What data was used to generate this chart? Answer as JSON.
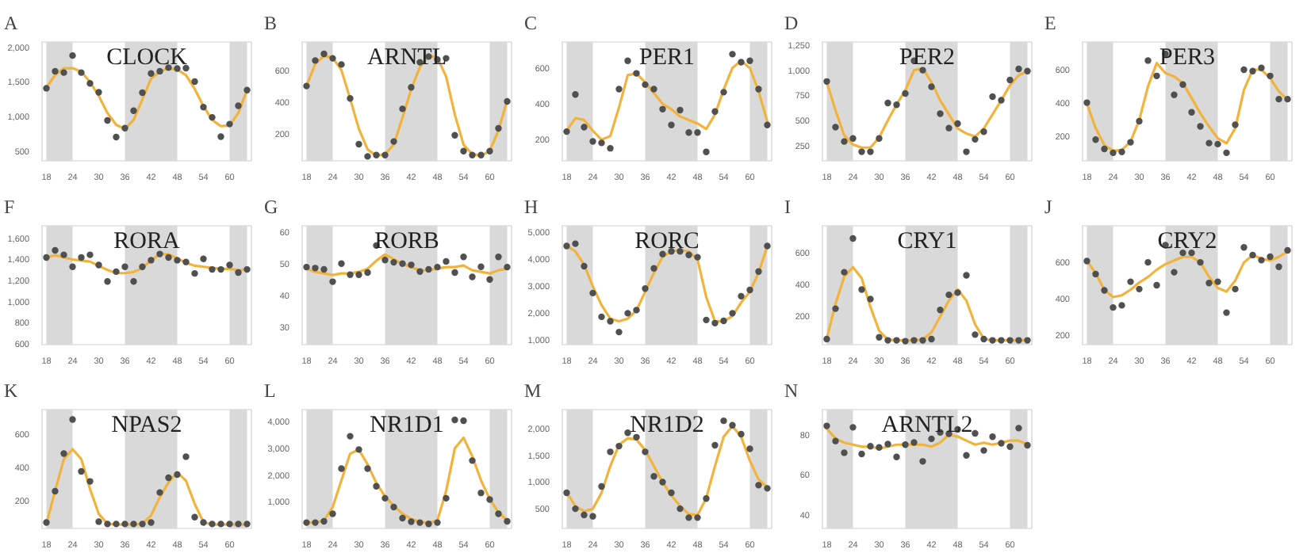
{
  "chart_data": [
    {
      "type": "scatter",
      "title": "A",
      "subtitle": "CLOCK",
      "x": [
        18,
        20,
        22,
        24,
        26,
        28,
        30,
        32,
        34,
        36,
        38,
        40,
        42,
        44,
        46,
        48,
        50,
        52,
        54,
        56,
        58,
        60,
        62,
        64
      ],
      "xlim": [
        17,
        65
      ],
      "xticks": [
        18,
        24,
        30,
        36,
        42,
        48,
        54,
        60
      ],
      "ylim": [
        357,
        2080
      ],
      "yticks": [
        500,
        {
          "value": 1000,
          "label": "1,000"
        },
        {
          "value": 1500,
          "label": "1,500"
        },
        {
          "value": 2000,
          "label": "2,000"
        }
      ],
      "bands": [
        {
          "axis": "x",
          "from": 18,
          "to": 24,
          "color": "#d9d9d9"
        },
        {
          "axis": "x",
          "from": 36,
          "to": 48,
          "color": "#d9d9d9"
        },
        {
          "axis": "x",
          "from": 60,
          "to": 64,
          "color": "#d9d9d9"
        }
      ],
      "series": [
        {
          "type": "line",
          "color": "#f2b33d",
          "marker": "none",
          "line_style": "solid",
          "values": [
            1420,
            1600,
            1700,
            1700,
            1650,
            1500,
            1300,
            1050,
            880,
            820,
            950,
            1250,
            1550,
            1650,
            1700,
            1680,
            1600,
            1400,
            1150,
            950,
            860,
            870,
            1050,
            1380
          ]
        },
        {
          "color": "#505050",
          "marker": "circle",
          "values": [
            1409,
            1656,
            1636,
            1883,
            1636,
            1480,
            1351,
            942,
            701,
            831,
            1084,
            1344,
            1623,
            1656,
            1708,
            1695,
            1701,
            1506,
            1136,
            987,
            708,
            890,
            1156,
            1383
          ]
        }
      ]
    },
    {
      "type": "scatter",
      "title": "B",
      "subtitle": "ARNTL",
      "x": [
        18,
        20,
        22,
        24,
        26,
        28,
        30,
        32,
        34,
        36,
        38,
        40,
        42,
        44,
        46,
        48,
        50,
        52,
        54,
        56,
        58,
        60,
        62,
        64
      ],
      "xlim": [
        17,
        65
      ],
      "xticks": [
        18,
        24,
        30,
        36,
        42,
        48,
        54,
        60
      ],
      "ylim": [
        28,
        778
      ],
      "yticks": [
        200,
        400,
        600
      ],
      "bands": [
        {
          "axis": "x",
          "from": 18,
          "to": 24,
          "color": "#d9d9d9"
        },
        {
          "axis": "x",
          "from": 36,
          "to": 48,
          "color": "#d9d9d9"
        },
        {
          "axis": "x",
          "from": 60,
          "to": 64,
          "color": "#d9d9d9"
        }
      ],
      "series": [
        {
          "type": "line",
          "color": "#f2b33d",
          "marker": "none",
          "line_style": "solid",
          "values": [
            500,
            640,
            690,
            680,
            600,
            420,
            230,
            100,
            60,
            70,
            130,
            300,
            480,
            620,
            690,
            680,
            560,
            320,
            130,
            70,
            60,
            90,
            220,
            410
          ]
        },
        {
          "color": "#505050",
          "marker": "circle",
          "values": [
            500,
            661,
            703,
            675,
            636,
            422,
            133,
            56,
            64,
            64,
            150,
            356,
            492,
            650,
            686,
            667,
            675,
            189,
            89,
            64,
            64,
            89,
            233,
            403
          ]
        }
      ]
    },
    {
      "type": "scatter",
      "title": "C",
      "subtitle": "PER1",
      "x": [
        18,
        20,
        22,
        24,
        26,
        28,
        30,
        32,
        34,
        36,
        38,
        40,
        42,
        44,
        46,
        48,
        50,
        52,
        54,
        56,
        58,
        60,
        62,
        64
      ],
      "xlim": [
        17,
        65
      ],
      "xticks": [
        18,
        24,
        30,
        36,
        42,
        48,
        54,
        60
      ],
      "ylim": [
        82,
        745
      ],
      "yticks": [
        200,
        400,
        600
      ],
      "bands": [
        {
          "axis": "x",
          "from": 18,
          "to": 24,
          "color": "#d9d9d9"
        },
        {
          "axis": "x",
          "from": 36,
          "to": 48,
          "color": "#d9d9d9"
        },
        {
          "axis": "x",
          "from": 60,
          "to": 64,
          "color": "#d9d9d9"
        }
      ],
      "series": [
        {
          "type": "line",
          "color": "#f2b33d",
          "marker": "none",
          "line_style": "solid",
          "values": [
            250,
            320,
            310,
            250,
            200,
            220,
            380,
            560,
            570,
            520,
            460,
            400,
            370,
            330,
            310,
            290,
            260,
            340,
            480,
            600,
            640,
            600,
            470,
            300
          ]
        },
        {
          "color": "#505050",
          "marker": "circle",
          "values": [
            245,
            452,
            270,
            190,
            182,
            152,
            482,
            640,
            570,
            507,
            482,
            370,
            282,
            365,
            240,
            240,
            132,
            357,
            465,
            677,
            632,
            640,
            482,
            282
          ]
        }
      ]
    },
    {
      "type": "scatter",
      "title": "D",
      "subtitle": "PER2",
      "x": [
        18,
        20,
        22,
        24,
        26,
        28,
        30,
        32,
        34,
        36,
        38,
        40,
        42,
        44,
        46,
        48,
        50,
        52,
        54,
        56,
        58,
        60,
        62,
        64
      ],
      "xlim": [
        17,
        65
      ],
      "xticks": [
        18,
        24,
        30,
        36,
        42,
        48,
        54,
        60
      ],
      "ylim": [
        98,
        1281
      ],
      "yticks": [
        250,
        500,
        750,
        {
          "value": 1000,
          "label": "1,000"
        },
        {
          "value": 1250,
          "label": "1,250"
        }
      ],
      "bands": [
        {
          "axis": "x",
          "from": 18,
          "to": 24,
          "color": "#d9d9d9"
        },
        {
          "axis": "x",
          "from": 36,
          "to": 48,
          "color": "#d9d9d9"
        },
        {
          "axis": "x",
          "from": 60,
          "to": 64,
          "color": "#d9d9d9"
        }
      ],
      "series": [
        {
          "type": "line",
          "color": "#f2b33d",
          "marker": "none",
          "line_style": "solid",
          "values": [
            880,
            600,
            350,
            260,
            230,
            230,
            330,
            500,
            660,
            800,
            1000,
            1020,
            880,
            700,
            560,
            420,
            370,
            340,
            420,
            560,
            700,
            850,
            950,
            990
          ]
        },
        {
          "color": "#505050",
          "marker": "circle",
          "values": [
            888,
            433,
            290,
            321,
            188,
            188,
            321,
            674,
            656,
            768,
            1094,
            1000,
            835,
            567,
            424,
            469,
            188,
            312,
            388,
            737,
            701,
            902,
            1013,
            991
          ]
        }
      ]
    },
    {
      "type": "scatter",
      "title": "E",
      "subtitle": "PER3",
      "x": [
        18,
        20,
        22,
        24,
        26,
        28,
        30,
        32,
        34,
        36,
        38,
        40,
        42,
        44,
        46,
        48,
        50,
        52,
        54,
        56,
        58,
        60,
        62,
        64
      ],
      "xlim": [
        17,
        65
      ],
      "xticks": [
        18,
        24,
        30,
        36,
        42,
        48,
        54,
        60
      ],
      "ylim": [
        55,
        766
      ],
      "yticks": [
        200,
        400,
        600
      ],
      "bands": [
        {
          "axis": "x",
          "from": 18,
          "to": 24,
          "color": "#d9d9d9"
        },
        {
          "axis": "x",
          "from": 36,
          "to": 48,
          "color": "#d9d9d9"
        },
        {
          "axis": "x",
          "from": 60,
          "to": 64,
          "color": "#d9d9d9"
        }
      ],
      "series": [
        {
          "type": "line",
          "color": "#f2b33d",
          "marker": "none",
          "line_style": "solid",
          "values": [
            400,
            250,
            150,
            115,
            120,
            170,
            300,
            500,
            640,
            580,
            560,
            520,
            430,
            340,
            260,
            190,
            160,
            250,
            480,
            600,
            600,
            550,
            470,
            420
          ]
        },
        {
          "color": "#505050",
          "marker": "circle",
          "values": [
            403,
            182,
            126,
            103,
            108,
            166,
            292,
            655,
            563,
            695,
            450,
            511,
            345,
            261,
            161,
            155,
            103,
            271,
            600,
            592,
            611,
            563,
            424,
            424
          ]
        }
      ]
    },
    {
      "type": "scatter",
      "title": "F",
      "subtitle": "RORA",
      "x": [
        18,
        20,
        22,
        24,
        26,
        28,
        30,
        32,
        34,
        36,
        38,
        40,
        42,
        44,
        46,
        48,
        50,
        52,
        54,
        56,
        58,
        60,
        62,
        64
      ],
      "xlim": [
        17,
        65
      ],
      "xticks": [
        18,
        24,
        30,
        36,
        42,
        48,
        54,
        60
      ],
      "ylim": [
        590,
        1720
      ],
      "yticks": [
        600,
        800,
        {
          "value": 1000,
          "label": "1,000"
        },
        {
          "value": 1200,
          "label": "1,200"
        },
        {
          "value": 1400,
          "label": "1,400"
        },
        {
          "value": 1600,
          "label": "1,600"
        }
      ],
      "bands": [
        {
          "axis": "x",
          "from": 18,
          "to": 24,
          "color": "#d9d9d9"
        },
        {
          "axis": "x",
          "from": 36,
          "to": 48,
          "color": "#d9d9d9"
        },
        {
          "axis": "x",
          "from": 60,
          "to": 64,
          "color": "#d9d9d9"
        }
      ],
      "series": [
        {
          "type": "line",
          "color": "#f2b33d",
          "marker": "none",
          "line_style": "solid",
          "values": [
            1420,
            1440,
            1420,
            1400,
            1390,
            1380,
            1340,
            1300,
            1270,
            1270,
            1280,
            1320,
            1390,
            1450,
            1450,
            1410,
            1370,
            1340,
            1330,
            1320,
            1310,
            1310,
            1300,
            1300
          ]
        },
        {
          "color": "#505050",
          "marker": "circle",
          "values": [
            1419,
            1486,
            1444,
            1330,
            1419,
            1444,
            1347,
            1191,
            1284,
            1330,
            1191,
            1330,
            1393,
            1452,
            1419,
            1393,
            1376,
            1267,
            1406,
            1305,
            1305,
            1347,
            1275,
            1305
          ]
        }
      ]
    },
    {
      "type": "scatter",
      "title": "G",
      "subtitle": "RORB",
      "x": [
        18,
        20,
        22,
        24,
        26,
        28,
        30,
        32,
        34,
        36,
        38,
        40,
        42,
        44,
        46,
        48,
        50,
        52,
        54,
        56,
        58,
        60,
        62,
        64
      ],
      "xlim": [
        17,
        65
      ],
      "xticks": [
        18,
        24,
        30,
        36,
        42,
        48,
        54,
        60
      ],
      "ylim": [
        24.6,
        62
      ],
      "yticks": [
        30,
        40,
        50,
        60
      ],
      "bands": [
        {
          "axis": "x",
          "from": 18,
          "to": 24,
          "color": "#d9d9d9"
        },
        {
          "axis": "x",
          "from": 36,
          "to": 48,
          "color": "#d9d9d9"
        },
        {
          "axis": "x",
          "from": 60,
          "to": 64,
          "color": "#d9d9d9"
        }
      ],
      "series": [
        {
          "type": "line",
          "color": "#f2b33d",
          "marker": "none",
          "line_style": "solid",
          "values": [
            48.5,
            47.5,
            47,
            46.5,
            47,
            47,
            47.5,
            48.5,
            51,
            53,
            51.5,
            50,
            49,
            48,
            48,
            48.5,
            49,
            49,
            49.5,
            48,
            47.5,
            47,
            48,
            48.5
          ]
        },
        {
          "color": "#505050",
          "marker": "circle",
          "values": [
            49.0,
            48.7,
            48.3,
            44.4,
            50.1,
            46.6,
            46.6,
            47.3,
            55.8,
            51.2,
            50.5,
            50.1,
            49.7,
            47.6,
            48.3,
            49.0,
            50.8,
            47.3,
            52.2,
            45.9,
            49.1,
            45.1,
            52.2,
            49.0
          ]
        }
      ]
    },
    {
      "type": "scatter",
      "title": "H",
      "subtitle": "RORC",
      "x": [
        18,
        20,
        22,
        24,
        26,
        28,
        30,
        32,
        34,
        36,
        38,
        40,
        42,
        44,
        46,
        48,
        50,
        52,
        54,
        56,
        58,
        60,
        62,
        64
      ],
      "xlim": [
        17,
        65
      ],
      "xticks": [
        18,
        24,
        30,
        36,
        42,
        48,
        54,
        60
      ],
      "ylim": [
        833,
        5250
      ],
      "yticks": [
        {
          "value": 1000,
          "label": "1,000"
        },
        {
          "value": 2000,
          "label": "2,000"
        },
        {
          "value": 3000,
          "label": "3,000"
        },
        {
          "value": 4000,
          "label": "4,000"
        },
        {
          "value": 5000,
          "label": "5,000"
        }
      ],
      "bands": [
        {
          "axis": "x",
          "from": 18,
          "to": 24,
          "color": "#d9d9d9"
        },
        {
          "axis": "x",
          "from": 36,
          "to": 48,
          "color": "#d9d9d9"
        },
        {
          "axis": "x",
          "from": 60,
          "to": 64,
          "color": "#d9d9d9"
        }
      ],
      "series": [
        {
          "type": "line",
          "color": "#f2b33d",
          "marker": "none",
          "line_style": "solid",
          "values": [
            4500,
            4300,
            3800,
            3000,
            2300,
            1800,
            1700,
            1800,
            2100,
            2800,
            3500,
            4100,
            4300,
            4350,
            4300,
            4000,
            2600,
            1700,
            1700,
            1900,
            2400,
            2800,
            3500,
            4500
          ]
        },
        {
          "color": "#505050",
          "marker": "circle",
          "values": [
            4500,
            4583,
            3750,
            2750,
            1867,
            1700,
            1300,
            2000,
            2117,
            2917,
            3667,
            4200,
            4300,
            4300,
            4167,
            4083,
            1750,
            1633,
            1717,
            2000,
            2633,
            2867,
            3550,
            4500
          ]
        }
      ]
    },
    {
      "type": "scatter",
      "title": "I",
      "subtitle": "CRY1",
      "x": [
        18,
        20,
        22,
        24,
        26,
        28,
        30,
        32,
        34,
        36,
        38,
        40,
        42,
        44,
        46,
        48,
        50,
        52,
        54,
        56,
        58,
        60,
        62,
        64
      ],
      "xlim": [
        17,
        65
      ],
      "xticks": [
        18,
        24,
        30,
        36,
        42,
        48,
        54,
        60
      ],
      "ylim": [
        23,
        770
      ],
      "yticks": [
        200,
        400,
        600
      ],
      "bands": [
        {
          "axis": "x",
          "from": 18,
          "to": 24,
          "color": "#d9d9d9"
        },
        {
          "axis": "x",
          "from": 36,
          "to": 48,
          "color": "#d9d9d9"
        },
        {
          "axis": "x",
          "from": 60,
          "to": 64,
          "color": "#d9d9d9"
        }
      ],
      "series": [
        {
          "type": "line",
          "color": "#f2b33d",
          "marker": "none",
          "line_style": "solid",
          "values": [
            60,
            280,
            450,
            510,
            440,
            260,
            110,
            55,
            50,
            50,
            50,
            55,
            100,
            200,
            300,
            370,
            300,
            150,
            60,
            50,
            50,
            50,
            50,
            50
          ]
        },
        {
          "color": "#505050",
          "marker": "circle",
          "values": [
            58,
            249,
            478,
            690,
            369,
            309,
            69,
            50,
            50,
            45,
            50,
            50,
            58,
            241,
            336,
            350,
            459,
            86,
            58,
            50,
            50,
            50,
            50,
            50
          ]
        }
      ]
    },
    {
      "type": "scatter",
      "title": "J",
      "subtitle": "CRY2",
      "x": [
        18,
        20,
        22,
        24,
        26,
        28,
        30,
        32,
        34,
        36,
        38,
        40,
        42,
        44,
        46,
        48,
        50,
        52,
        54,
        56,
        58,
        60,
        62,
        64
      ],
      "xlim": [
        17,
        65
      ],
      "xticks": [
        18,
        24,
        30,
        36,
        42,
        48,
        54,
        60
      ],
      "ylim": [
        150,
        800
      ],
      "yticks": [
        200,
        400,
        600
      ],
      "bands": [
        {
          "axis": "x",
          "from": 18,
          "to": 24,
          "color": "#d9d9d9"
        },
        {
          "axis": "x",
          "from": 36,
          "to": 48,
          "color": "#d9d9d9"
        },
        {
          "axis": "x",
          "from": 60,
          "to": 64,
          "color": "#d9d9d9"
        }
      ],
      "series": [
        {
          "type": "line",
          "color": "#f2b33d",
          "marker": "none",
          "line_style": "solid",
          "values": [
            610,
            540,
            450,
            410,
            420,
            450,
            490,
            520,
            560,
            590,
            610,
            630,
            630,
            600,
            520,
            460,
            440,
            500,
            600,
            640,
            620,
            610,
            630,
            660
          ]
        },
        {
          "color": "#505050",
          "marker": "circle",
          "values": [
            607,
            536,
            447,
            353,
            365,
            494,
            454,
            600,
            475,
            694,
            546,
            652,
            652,
            600,
            487,
            494,
            325,
            454,
            682,
            640,
            612,
            631,
            576,
            666
          ]
        }
      ]
    },
    {
      "type": "scatter",
      "title": "K",
      "subtitle": "NPAS2",
      "x": [
        18,
        20,
        22,
        24,
        26,
        28,
        30,
        32,
        34,
        36,
        38,
        40,
        42,
        44,
        46,
        48,
        50,
        52,
        54,
        56,
        58,
        60,
        62,
        64
      ],
      "xlim": [
        17,
        65
      ],
      "xticks": [
        18,
        24,
        30,
        36,
        42,
        48,
        54,
        60
      ],
      "ylim": [
        32,
        749
      ],
      "yticks": [
        200,
        400,
        600
      ],
      "bands": [
        {
          "axis": "x",
          "from": 18,
          "to": 24,
          "color": "#d9d9d9"
        },
        {
          "axis": "x",
          "from": 36,
          "to": 48,
          "color": "#d9d9d9"
        },
        {
          "axis": "x",
          "from": 60,
          "to": 64,
          "color": "#d9d9d9"
        }
      ],
      "series": [
        {
          "type": "line",
          "color": "#f2b33d",
          "marker": "none",
          "line_style": "solid",
          "values": [
            60,
            260,
            450,
            510,
            450,
            270,
            120,
            60,
            55,
            55,
            55,
            60,
            110,
            220,
            310,
            370,
            320,
            180,
            70,
            55,
            55,
            55,
            55,
            55
          ]
        },
        {
          "color": "#505050",
          "marker": "circle",
          "values": [
            68,
            257,
            484,
            689,
            376,
            316,
            73,
            59,
            59,
            59,
            59,
            59,
            68,
            249,
            338,
            357,
            465,
            100,
            68,
            59,
            59,
            59,
            59,
            59
          ]
        }
      ]
    },
    {
      "type": "scatter",
      "title": "L",
      "subtitle": "NR1D1",
      "x": [
        18,
        20,
        22,
        24,
        26,
        28,
        30,
        32,
        34,
        36,
        38,
        40,
        42,
        44,
        46,
        48,
        50,
        52,
        54,
        56,
        58,
        60,
        62,
        64
      ],
      "xlim": [
        17,
        65
      ],
      "xticks": [
        18,
        24,
        30,
        36,
        42,
        48,
        54,
        60
      ],
      "ylim": [
        0,
        4450
      ],
      "yticks": [
        {
          "value": 1000,
          "label": "1,000"
        },
        {
          "value": 2000,
          "label": "2,000"
        },
        {
          "value": 3000,
          "label": "3,000"
        },
        {
          "value": 4000,
          "label": "4,000"
        }
      ],
      "bands": [
        {
          "axis": "x",
          "from": 18,
          "to": 24,
          "color": "#d9d9d9"
        },
        {
          "axis": "x",
          "from": 36,
          "to": 48,
          "color": "#d9d9d9"
        },
        {
          "axis": "x",
          "from": 60,
          "to": 64,
          "color": "#d9d9d9"
        }
      ],
      "series": [
        {
          "type": "line",
          "color": "#f2b33d",
          "marker": "none",
          "line_style": "solid",
          "values": [
            220,
            220,
            300,
            800,
            1800,
            2800,
            2950,
            2400,
            1700,
            1200,
            850,
            550,
            350,
            250,
            200,
            300,
            1400,
            3000,
            3400,
            2700,
            1800,
            1100,
            600,
            300
          ]
        },
        {
          "color": "#505050",
          "marker": "circle",
          "values": [
            219,
            219,
            269,
            551,
            2242,
            3453,
            2955,
            2242,
            1579,
            1131,
            799,
            385,
            252,
            219,
            169,
            219,
            1131,
            4066,
            4033,
            2541,
            1330,
            1081,
            551,
            269
          ]
        }
      ]
    },
    {
      "type": "scatter",
      "title": "M",
      "subtitle": "NR1D2",
      "x": [
        18,
        20,
        22,
        24,
        26,
        28,
        30,
        32,
        34,
        36,
        38,
        40,
        42,
        44,
        46,
        48,
        50,
        52,
        54,
        56,
        58,
        60,
        62,
        64
      ],
      "xlim": [
        17,
        65
      ],
      "xticks": [
        18,
        24,
        30,
        36,
        42,
        48,
        54,
        60
      ],
      "ylim": [
        130,
        2360
      ],
      "yticks": [
        500,
        {
          "value": 1000,
          "label": "1,000"
        },
        {
          "value": 1500,
          "label": "1,500"
        },
        {
          "value": 2000,
          "label": "2,000"
        }
      ],
      "bands": [
        {
          "axis": "x",
          "from": 18,
          "to": 24,
          "color": "#d9d9d9"
        },
        {
          "axis": "x",
          "from": 36,
          "to": 48,
          "color": "#d9d9d9"
        },
        {
          "axis": "x",
          "from": 60,
          "to": 64,
          "color": "#d9d9d9"
        }
      ],
      "series": [
        {
          "type": "line",
          "color": "#f2b33d",
          "marker": "none",
          "line_style": "solid",
          "values": [
            800,
            550,
            450,
            500,
            800,
            1300,
            1700,
            1820,
            1800,
            1600,
            1300,
            1000,
            750,
            550,
            400,
            380,
            700,
            1300,
            1850,
            2050,
            1850,
            1400,
            1050,
            900
          ]
        },
        {
          "color": "#505050",
          "marker": "circle",
          "values": [
            800,
            500,
            383,
            358,
            917,
            1567,
            1675,
            1925,
            1842,
            1567,
            1108,
            1000,
            800,
            500,
            333,
            333,
            692,
            1692,
            2150,
            2067,
            1900,
            1625,
            942,
            883
          ]
        }
      ]
    },
    {
      "type": "scatter",
      "title": "N",
      "subtitle": "ARNTL2",
      "x": [
        18,
        20,
        22,
        24,
        26,
        28,
        30,
        32,
        34,
        36,
        38,
        40,
        42,
        44,
        46,
        48,
        50,
        52,
        54,
        56,
        58,
        60,
        62,
        64
      ],
      "xlim": [
        17,
        65
      ],
      "xticks": [
        18,
        24,
        30,
        36,
        42,
        48,
        54,
        60
      ],
      "ylim": [
        33.4,
        92.4
      ],
      "yticks": [
        40,
        60,
        80
      ],
      "bands": [
        {
          "axis": "x",
          "from": 18,
          "to": 24,
          "color": "#d9d9d9"
        },
        {
          "axis": "x",
          "from": 36,
          "to": 48,
          "color": "#d9d9d9"
        },
        {
          "axis": "x",
          "from": 60,
          "to": 64,
          "color": "#d9d9d9"
        }
      ],
      "series": [
        {
          "type": "line",
          "color": "#f2b33d",
          "marker": "none",
          "line_style": "solid",
          "values": [
            83,
            78,
            76,
            75,
            74,
            74,
            73,
            74,
            75,
            75,
            75,
            75,
            74,
            76,
            80,
            79,
            77,
            75,
            76,
            75,
            76,
            77,
            77,
            75
          ]
        },
        {
          "color": "#505050",
          "marker": "circle",
          "values": [
            84.3,
            76.8,
            71.0,
            83.6,
            70.4,
            74.2,
            73.6,
            75.3,
            68.9,
            75.0,
            76.1,
            66.7,
            77.9,
            81.1,
            80.4,
            82.6,
            69.7,
            80.6,
            72.1,
            78.9,
            75.7,
            74.0,
            83.2,
            74.7
          ]
        }
      ]
    }
  ]
}
